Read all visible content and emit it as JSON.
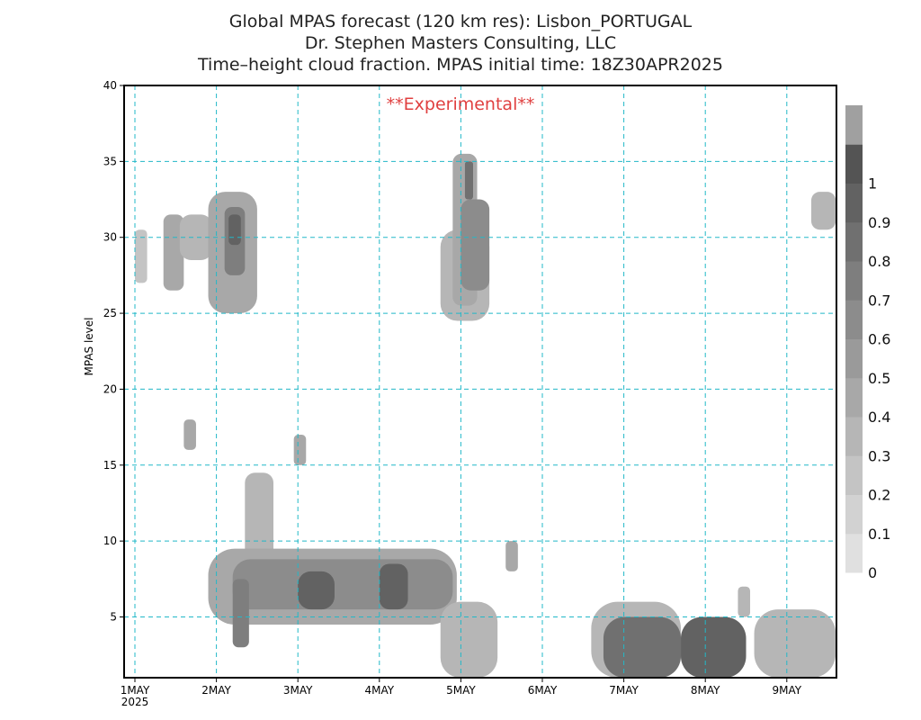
{
  "header": {
    "line1": "Global MPAS forecast (120 km res): Lisbon_PORTUGAL",
    "line2": "Dr. Stephen Masters Consulting, LLC",
    "line3": "Time–height cloud fraction.   MPAS initial time: 18Z30APR2025"
  },
  "annotation": "**Experimental**",
  "colors": {
    "grid": "#22b8c8",
    "annotation": "#e04040"
  },
  "chart_data": {
    "type": "heatmap",
    "title": "Time–height cloud fraction.",
    "xlabel": "",
    "ylabel": "MPAS level",
    "xlim_days_label": [
      "1MAY 2025",
      "9MAY"
    ],
    "ylim": [
      1,
      40
    ],
    "x_ticks": [
      "1MAY",
      "2MAY",
      "3MAY",
      "4MAY",
      "5MAY",
      "6MAY",
      "7MAY",
      "8MAY",
      "9MAY"
    ],
    "x_tick_year": "2025",
    "y_ticks": [
      5,
      10,
      15,
      20,
      25,
      30,
      35,
      40
    ],
    "colorbar": {
      "levels": [
        "0",
        "0.1",
        "0.2",
        "0.3",
        "0.4",
        "0.5",
        "0.6",
        "0.7",
        "0.8",
        "0.9",
        "1"
      ],
      "colors": [
        "#e0e0e0",
        "#d2d2d2",
        "#c4c4c4",
        "#b6b6b6",
        "#a8a8a8",
        "#9a9a9a",
        "#8c8c8c",
        "#7e7e7e",
        "#707070",
        "#626262",
        "#545454",
        "#a0a0a0"
      ]
    },
    "grid": true,
    "regions": [
      {
        "x": [
          1.0,
          1.15
        ],
        "y": [
          27,
          30.5
        ],
        "v": 0.15
      },
      {
        "x": [
          1.35,
          1.6
        ],
        "y": [
          26.5,
          31.5
        ],
        "v": 0.3
      },
      {
        "x": [
          1.55,
          1.95
        ],
        "y": [
          28.5,
          31.5
        ],
        "v": 0.2
      },
      {
        "x": [
          1.9,
          2.5
        ],
        "y": [
          25,
          33
        ],
        "v": 0.35
      },
      {
        "x": [
          2.1,
          2.35
        ],
        "y": [
          27.5,
          32
        ],
        "v": 0.6
      },
      {
        "x": [
          2.15,
          2.3
        ],
        "y": [
          29.5,
          31.5
        ],
        "v": 0.8
      },
      {
        "x": [
          4.75,
          5.35
        ],
        "y": [
          24.5,
          30.5
        ],
        "v": 0.25
      },
      {
        "x": [
          4.9,
          5.2
        ],
        "y": [
          25.5,
          35.5
        ],
        "v": 0.35
      },
      {
        "x": [
          5.0,
          5.35
        ],
        "y": [
          26.5,
          32.5
        ],
        "v": 0.5
      },
      {
        "x": [
          5.05,
          5.15
        ],
        "y": [
          32.5,
          35
        ],
        "v": 0.7
      },
      {
        "x": [
          9.3,
          9.6
        ],
        "y": [
          30.5,
          33
        ],
        "v": 0.25
      },
      {
        "x": [
          1.6,
          1.75
        ],
        "y": [
          16,
          18
        ],
        "v": 0.35
      },
      {
        "x": [
          2.95,
          3.1
        ],
        "y": [
          15,
          17
        ],
        "v": 0.35
      },
      {
        "x": [
          5.55,
          5.7
        ],
        "y": [
          8,
          10
        ],
        "v": 0.35
      },
      {
        "x": [
          2.35,
          2.7
        ],
        "y": [
          6.5,
          14.5
        ],
        "v": 0.25
      },
      {
        "x": [
          1.9,
          4.95
        ],
        "y": [
          4.5,
          9.5
        ],
        "v": 0.3
      },
      {
        "x": [
          2.2,
          4.9
        ],
        "y": [
          5.5,
          8.8
        ],
        "v": 0.55
      },
      {
        "x": [
          2.2,
          2.4
        ],
        "y": [
          3,
          7.5
        ],
        "v": 0.6
      },
      {
        "x": [
          3.0,
          3.45
        ],
        "y": [
          5.5,
          8
        ],
        "v": 0.8
      },
      {
        "x": [
          4.0,
          4.35
        ],
        "y": [
          5.5,
          8.5
        ],
        "v": 0.8
      },
      {
        "x": [
          4.75,
          5.45
        ],
        "y": [
          1,
          6
        ],
        "v": 0.2
      },
      {
        "x": [
          6.6,
          7.7
        ],
        "y": [
          1,
          6
        ],
        "v": 0.25
      },
      {
        "x": [
          6.75,
          7.7
        ],
        "y": [
          1,
          5
        ],
        "v": 0.75
      },
      {
        "x": [
          7.7,
          8.5
        ],
        "y": [
          1,
          5
        ],
        "v": 0.85
      },
      {
        "x": [
          8.6,
          9.6
        ],
        "y": [
          1,
          5.5
        ],
        "v": 0.25
      },
      {
        "x": [
          8.4,
          8.55
        ],
        "y": [
          5,
          7
        ],
        "v": 0.2
      }
    ]
  }
}
